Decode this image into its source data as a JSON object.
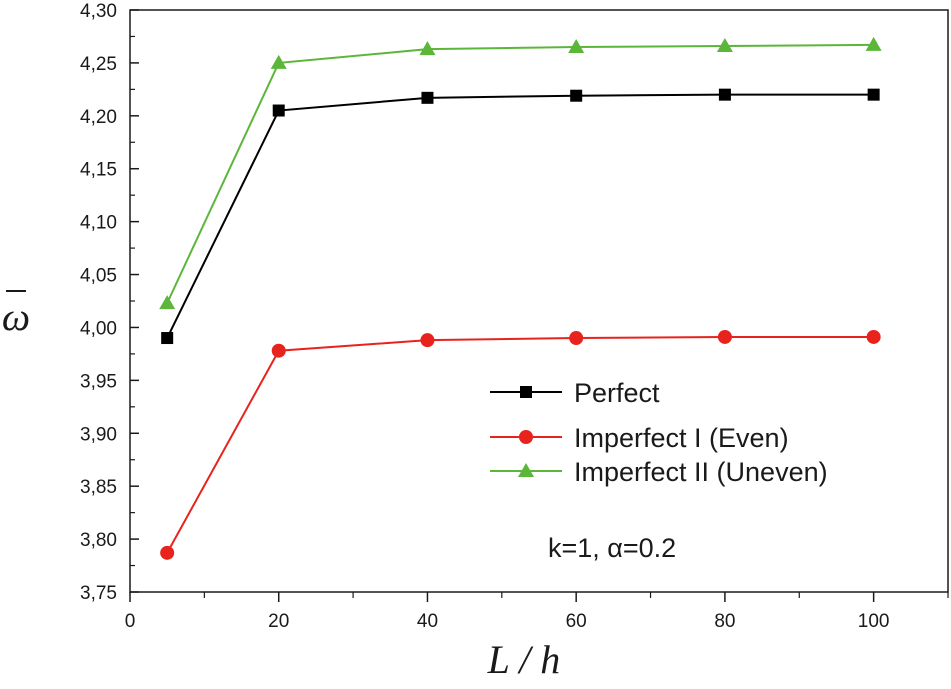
{
  "chart_data": {
    "type": "line",
    "title": "",
    "xlabel": "L / h",
    "ylabel": "ω",
    "xlim": [
      0,
      110
    ],
    "ylim": [
      3.75,
      4.3
    ],
    "x_ticks": [
      0,
      20,
      40,
      60,
      80,
      100
    ],
    "x_tick_labels": [
      "0",
      "20",
      "40",
      "60",
      "80",
      "100"
    ],
    "y_ticks": [
      3.75,
      3.8,
      3.85,
      3.9,
      3.95,
      4.0,
      4.05,
      4.1,
      4.15,
      4.2,
      4.25,
      4.3
    ],
    "y_tick_labels": [
      "3,75",
      "3,80",
      "3,85",
      "3,90",
      "3,95",
      "4,00",
      "4,05",
      "4,10",
      "4,15",
      "4,20",
      "4,25",
      "4,30"
    ],
    "x": [
      5,
      20,
      40,
      60,
      80,
      100
    ],
    "series": [
      {
        "name": "Perfect",
        "color": "#000000",
        "marker": "square",
        "values": [
          3.99,
          4.205,
          4.217,
          4.219,
          4.22,
          4.22
        ]
      },
      {
        "name": "Imperfect I (Even)",
        "color": "#e8231e",
        "marker": "circle",
        "values": [
          3.787,
          3.978,
          3.988,
          3.99,
          3.991,
          3.991
        ]
      },
      {
        "name": "Imperfect II (Uneven)",
        "color": "#5cb63a",
        "marker": "triangle",
        "values": [
          4.023,
          4.25,
          4.263,
          4.265,
          4.266,
          4.267
        ]
      }
    ],
    "legend_position": "center-right",
    "annotation": "k=1, α=0.2",
    "grid": false
  }
}
